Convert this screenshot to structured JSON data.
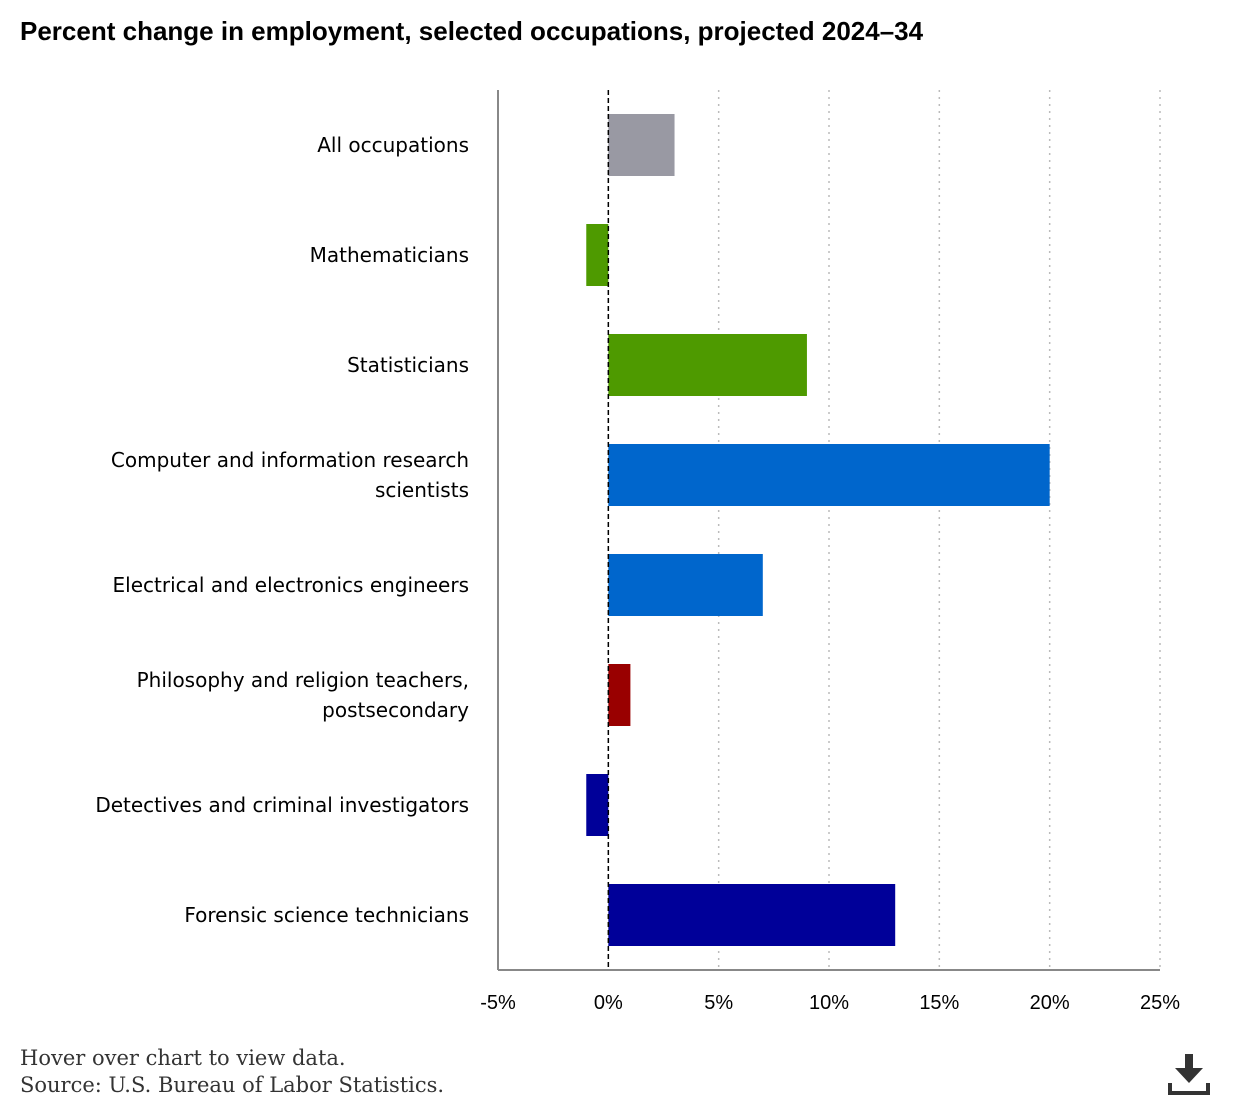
{
  "chart_data": {
    "type": "bar",
    "orientation": "horizontal",
    "title": "Percent change in employment, selected occupations, projected 2024–34",
    "categories": [
      [
        "All occupations"
      ],
      [
        "Mathematicians"
      ],
      [
        "Statisticians"
      ],
      [
        "Computer and information research",
        "scientists"
      ],
      [
        "Electrical and electronics engineers"
      ],
      [
        "Philosophy and religion teachers,",
        "postsecondary"
      ],
      [
        "Detectives and criminal investigators"
      ],
      [
        "Forensic science technicians"
      ]
    ],
    "values": [
      3,
      -1,
      9,
      20,
      7,
      1,
      -1,
      13
    ],
    "colors": [
      "#9999a3",
      "#4e9a00",
      "#4e9a00",
      "#0066cc",
      "#0066cc",
      "#990000",
      "#000099",
      "#000099"
    ],
    "xlim": [
      -5,
      25
    ],
    "ticks": [
      -5,
      0,
      5,
      10,
      15,
      20,
      25
    ],
    "tick_labels": [
      "-5%",
      "0%",
      "5%",
      "10%",
      "15%",
      "20%",
      "25%"
    ],
    "xlabel": "",
    "ylabel": "",
    "grid": true
  },
  "footer": {
    "hover_note": "Hover over chart to view data.",
    "source": "Source: U.S. Bureau of Labor Statistics."
  },
  "icons": {
    "download": "download-icon"
  }
}
